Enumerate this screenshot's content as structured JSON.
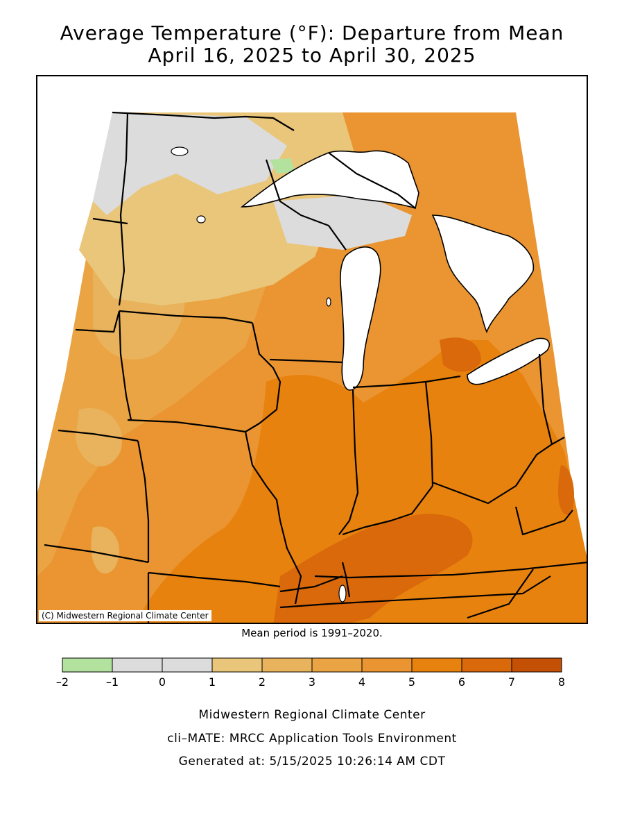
{
  "title_line1": "Average Temperature (°F): Departure from Mean",
  "title_line2": "April 16, 2025 to April 30, 2025",
  "copyright": "(C) Midwestern Regional Climate Center",
  "mean_note": "Mean period is 1991–2020.",
  "legend": {
    "ticks": [
      "–2",
      "–1",
      "0",
      "1",
      "2",
      "3",
      "4",
      "5",
      "6",
      "7",
      "8"
    ],
    "colors": [
      "#b3e29f",
      "#dcdcdc",
      "#dcdcdc",
      "#e9c67a",
      "#e8b35c",
      "#eaa444",
      "#ea9531",
      "#e8820e",
      "#d9690b",
      "#c45005"
    ]
  },
  "palette": {
    "below": "#b3e29f",
    "near": "#dcdcdc",
    "d1": "#e9c67a",
    "d2": "#e8b35c",
    "d3": "#eaa444",
    "d4": "#ea9531",
    "d5": "#e8820e",
    "d6": "#d9690b",
    "lake": "#ffffff"
  },
  "footer": {
    "line1": "Midwestern Regional Climate Center",
    "line2": "cli–MATE: MRCC Application Tools Environment",
    "line3": "Generated at: 5/15/2025 10:26:14 AM CDT"
  }
}
